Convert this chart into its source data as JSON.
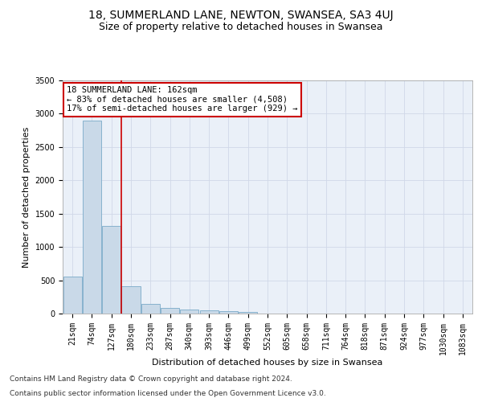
{
  "title": "18, SUMMERLAND LANE, NEWTON, SWANSEA, SA3 4UJ",
  "subtitle": "Size of property relative to detached houses in Swansea",
  "xlabel": "Distribution of detached houses by size in Swansea",
  "ylabel": "Number of detached properties",
  "bar_labels": [
    "21sqm",
    "74sqm",
    "127sqm",
    "180sqm",
    "233sqm",
    "287sqm",
    "340sqm",
    "393sqm",
    "446sqm",
    "499sqm",
    "552sqm",
    "605sqm",
    "658sqm",
    "711sqm",
    "764sqm",
    "818sqm",
    "871sqm",
    "924sqm",
    "977sqm",
    "1030sqm",
    "1083sqm"
  ],
  "bar_values": [
    560,
    2900,
    1320,
    410,
    150,
    80,
    55,
    45,
    35,
    30,
    0,
    0,
    0,
    0,
    0,
    0,
    0,
    0,
    0,
    0,
    0
  ],
  "bar_color": "#c9d9e8",
  "bar_edgecolor": "#7aaac8",
  "ylim": [
    0,
    3500
  ],
  "yticks": [
    0,
    500,
    1000,
    1500,
    2000,
    2500,
    3000,
    3500
  ],
  "vline_x": 2,
  "annotation_title": "18 SUMMERLAND LANE: 162sqm",
  "annotation_line1": "← 83% of detached houses are smaller (4,508)",
  "annotation_line2": "17% of semi-detached houses are larger (929) →",
  "annotation_box_color": "#ffffff",
  "annotation_box_edgecolor": "#cc0000",
  "vline_color": "#cc0000",
  "grid_color": "#d0d8e8",
  "background_color": "#eaf0f8",
  "footer_line1": "Contains HM Land Registry data © Crown copyright and database right 2024.",
  "footer_line2": "Contains public sector information licensed under the Open Government Licence v3.0.",
  "title_fontsize": 10,
  "subtitle_fontsize": 9,
  "annotation_fontsize": 7.5,
  "footer_fontsize": 6.5,
  "axis_label_fontsize": 8,
  "tick_fontsize": 7
}
